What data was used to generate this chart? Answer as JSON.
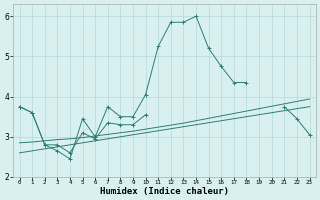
{
  "x": [
    0,
    1,
    2,
    3,
    4,
    5,
    6,
    7,
    8,
    9,
    10,
    11,
    12,
    13,
    14,
    15,
    16,
    17,
    18,
    19,
    20,
    21,
    22,
    23
  ],
  "line1": [
    3.75,
    3.6,
    2.8,
    2.65,
    2.45,
    3.45,
    3.0,
    3.75,
    3.5,
    3.5,
    4.05,
    5.25,
    5.85,
    5.85,
    6.0,
    5.2,
    4.75,
    4.35,
    4.35,
    null,
    null,
    3.75,
    3.45,
    3.05
  ],
  "line2": [
    3.75,
    3.6,
    2.8,
    2.8,
    2.6,
    3.1,
    2.95,
    3.35,
    3.3,
    3.3,
    3.55,
    null,
    null,
    null,
    null,
    null,
    null,
    null,
    null,
    null,
    null,
    null,
    null,
    null
  ],
  "line3": [
    2.85,
    2.87,
    2.9,
    2.93,
    2.95,
    2.98,
    3.02,
    3.06,
    3.1,
    3.14,
    3.19,
    3.24,
    3.29,
    3.34,
    3.4,
    3.46,
    3.52,
    3.58,
    3.64,
    3.7,
    3.76,
    3.82,
    3.88,
    3.94
  ],
  "line4": [
    2.6,
    2.65,
    2.7,
    2.75,
    2.8,
    2.85,
    2.9,
    2.95,
    3.0,
    3.05,
    3.1,
    3.15,
    3.2,
    3.25,
    3.3,
    3.35,
    3.4,
    3.45,
    3.5,
    3.55,
    3.6,
    3.65,
    3.7,
    3.75
  ],
  "line_color": "#2e7d72",
  "bg_color": "#d8f0f0",
  "grid_color": "#b8d8d8",
  "xlabel": "Humidex (Indice chaleur)",
  "ylim": [
    2.0,
    6.3
  ],
  "xlim": [
    -0.5,
    23.5
  ],
  "yticks": [
    2,
    3,
    4,
    5,
    6
  ],
  "xticks": [
    0,
    1,
    2,
    3,
    4,
    5,
    6,
    7,
    8,
    9,
    10,
    11,
    12,
    13,
    14,
    15,
    16,
    17,
    18,
    19,
    20,
    21,
    22,
    23
  ]
}
